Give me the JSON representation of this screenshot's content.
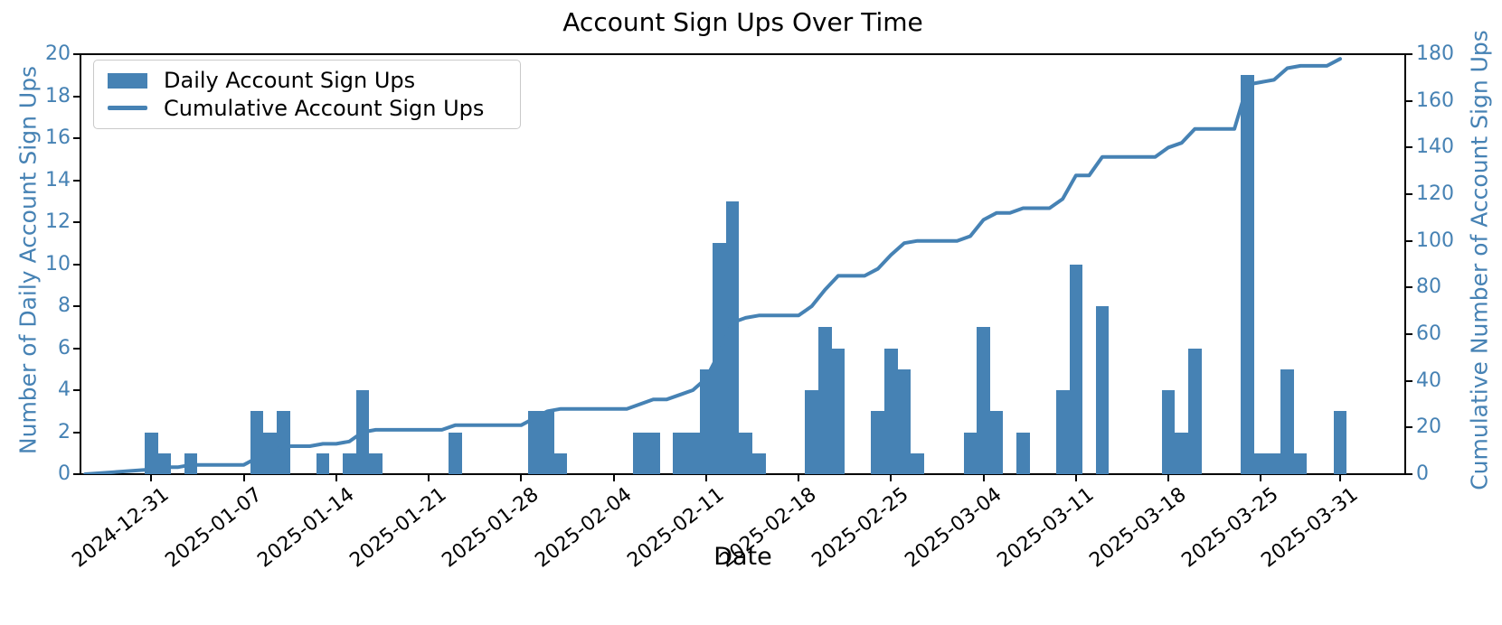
{
  "chart_data": {
    "type": "bar",
    "title": "Account Sign Ups Over Time",
    "xlabel": "Date",
    "ylabel_left": "Number of Daily Account Sign Ups",
    "ylabel_right": "Cumulative Number of Account Sign Ups",
    "ylim_left": [
      0,
      20
    ],
    "ylim_right": [
      0,
      180
    ],
    "y_left_ticks": [
      0,
      2,
      4,
      6,
      8,
      10,
      12,
      14,
      16,
      18,
      20
    ],
    "y_right_ticks": [
      0,
      20,
      40,
      60,
      80,
      100,
      120,
      140,
      160,
      180
    ],
    "x_tick_labels": [
      "2024-12-31",
      "2025-01-07",
      "2025-01-14",
      "2025-01-21",
      "2025-01-28",
      "2025-02-04",
      "2025-02-11",
      "2025-02-18",
      "2025-02-25",
      "2025-03-04",
      "2025-03-11",
      "2025-03-18",
      "2025-03-25",
      "2025-03-31"
    ],
    "x_domain_days": [
      -5.36,
      94.93
    ],
    "grid": false,
    "legend_position": "upper left",
    "series": [
      {
        "name": "Daily Account Sign Ups",
        "type": "bar",
        "color": "#4682b4",
        "axis": "left"
      },
      {
        "name": "Cumulative Account Sign Ups",
        "type": "line",
        "color": "#4682b4",
        "axis": "right"
      }
    ],
    "daily": {
      "start_date": "2024-12-31",
      "values_per_day": [
        2,
        1,
        0,
        1,
        0,
        0,
        0,
        0,
        3,
        2,
        3,
        0,
        0,
        1,
        0,
        1,
        4,
        1,
        0,
        0,
        0,
        0,
        0,
        2,
        0,
        0,
        0,
        0,
        0,
        3,
        3,
        1,
        0,
        0,
        0,
        0,
        0,
        2,
        2,
        0,
        2,
        2,
        5,
        11,
        13,
        2,
        1,
        0,
        0,
        0,
        4,
        7,
        6,
        0,
        0,
        3,
        6,
        5,
        1,
        0,
        0,
        0,
        2,
        7,
        3,
        0,
        2,
        0,
        0,
        4,
        10,
        0,
        8,
        0,
        0,
        0,
        0,
        4,
        2,
        6,
        0,
        0,
        0,
        19,
        1,
        1,
        5,
        1,
        0,
        0,
        3
      ]
    },
    "cumulative": {
      "lead_in_day_offset": -5,
      "lead_in_value": 0,
      "final_total": 178
    }
  },
  "colors": {
    "accent": "#4682b4",
    "text": "#000000",
    "frame": "#000000",
    "legend_border": "#c9c9c9"
  }
}
